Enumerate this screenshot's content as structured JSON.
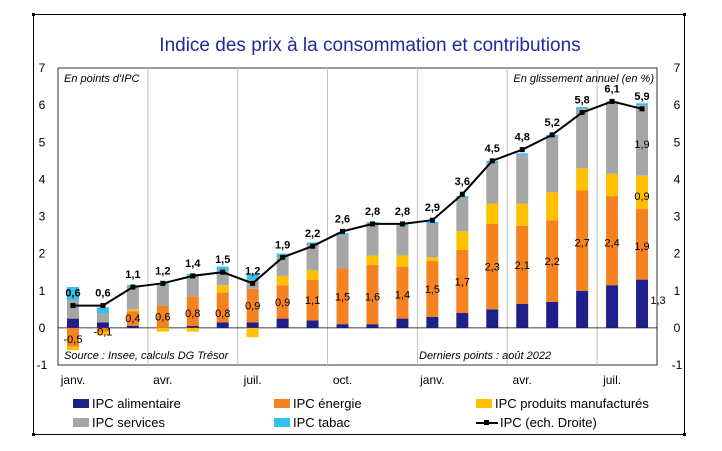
{
  "chart_data": {
    "type": "bar",
    "stacked": true,
    "title": "Indice des prix à la consommation et contributions",
    "left_axis_note": "En points d'IPC",
    "right_axis_note": "En glissement annuel (en %)",
    "source_note": "Source : Insee, calculs DG Trésor",
    "last_points_note": "Derniers points : août 2022",
    "ylim": [
      -1,
      7
    ],
    "y_ticks": [
      "-1",
      "0",
      "1",
      "2",
      "3",
      "4",
      "5",
      "6",
      "7"
    ],
    "x_tick_labels": [
      "janv.",
      "avr.",
      "juil.",
      "oct.",
      "janv.",
      "avr.",
      "juil."
    ],
    "months": [
      "2021-01",
      "2021-02",
      "2021-03",
      "2021-04",
      "2021-05",
      "2021-06",
      "2021-07",
      "2021-08",
      "2021-09",
      "2021-10",
      "2021-11",
      "2021-12",
      "2022-01",
      "2022-02",
      "2022-03",
      "2022-04",
      "2022-05",
      "2022-06",
      "2022-07",
      "2022-08"
    ],
    "series": [
      {
        "name": "IPC alimentaire",
        "color": "#1f1f8c",
        "values": [
          0.25,
          0.15,
          0.05,
          0.0,
          0.05,
          0.15,
          0.15,
          0.25,
          0.2,
          0.1,
          0.1,
          0.25,
          0.3,
          0.4,
          0.5,
          0.65,
          0.7,
          1.0,
          1.15,
          1.3
        ]
      },
      {
        "name": "IPC énergie",
        "color": "#f58220",
        "values": [
          -0.5,
          -0.1,
          0.4,
          0.6,
          0.8,
          0.8,
          0.9,
          0.9,
          1.1,
          1.5,
          1.6,
          1.4,
          1.5,
          1.7,
          2.3,
          2.1,
          2.2,
          2.7,
          2.4,
          1.9
        ]
      },
      {
        "name": "IPC produits manufacturés",
        "color": "#ffc000",
        "values": [
          -0.1,
          -0.1,
          0.05,
          -0.1,
          -0.1,
          0.2,
          -0.25,
          0.25,
          0.25,
          0.0,
          0.25,
          0.3,
          0.1,
          0.5,
          0.55,
          0.6,
          0.75,
          0.6,
          0.6,
          0.9
        ]
      },
      {
        "name": "IPC services",
        "color": "#a6a6a6",
        "values": [
          0.5,
          0.25,
          0.6,
          0.55,
          0.55,
          0.4,
          0.25,
          0.5,
          0.7,
          0.9,
          0.85,
          0.8,
          0.9,
          0.9,
          1.1,
          1.3,
          1.5,
          1.6,
          1.9,
          1.9
        ]
      },
      {
        "name": "IPC tabac",
        "color": "#33bff0",
        "values": [
          0.35,
          0.15,
          0.05,
          0.05,
          0.05,
          0.1,
          0.15,
          0.1,
          0.05,
          0.05,
          0.05,
          0.05,
          0.05,
          0.05,
          0.05,
          0.05,
          0.05,
          0.05,
          0.05,
          0.05
        ]
      }
    ],
    "line": {
      "name": "IPC (ech. Droite)",
      "color": "#000000",
      "values": [
        0.6,
        0.6,
        1.1,
        1.2,
        1.4,
        1.5,
        1.2,
        1.9,
        2.2,
        2.6,
        2.8,
        2.8,
        2.9,
        3.6,
        4.5,
        4.8,
        5.2,
        5.8,
        6.1,
        5.9
      ],
      "labels": [
        "0,6",
        "0,6",
        "1,1",
        "1,2",
        "1,4",
        "1,5",
        "1,2",
        "1,9",
        "2,2",
        "2,6",
        "2,8",
        "2,8",
        "2,9",
        "3,6",
        "4,5",
        "4,8",
        "5,2",
        "5,8",
        "6,1",
        "5,9"
      ]
    },
    "bar_labels": [
      {
        "index": 0,
        "series": "IPC énergie",
        "value": -0.5,
        "text": "-0,5",
        "value_pos": -0.3
      },
      {
        "index": 1,
        "series": "IPC énergie",
        "value": -0.1,
        "text": "-0,1",
        "value_pos": -0.1
      },
      {
        "index": 2,
        "series": "IPC énergie",
        "value": 0.4,
        "text": "0,4",
        "value_pos": 0.27
      },
      {
        "index": 3,
        "series": "IPC énergie",
        "value": 0.6,
        "text": "0,6",
        "value_pos": 0.3
      },
      {
        "index": 4,
        "series": "IPC énergie",
        "value": 0.8,
        "text": "0,8",
        "value_pos": 0.4
      },
      {
        "index": 5,
        "series": "IPC énergie",
        "value": 0.8,
        "text": "0,8",
        "value_pos": 0.4
      },
      {
        "index": 6,
        "series": "IPC énergie",
        "value": 0.9,
        "text": "0,9",
        "value_pos": 0.6
      },
      {
        "index": 7,
        "series": "IPC énergie",
        "value": 0.9,
        "text": "0,9",
        "value_pos": 0.7
      },
      {
        "index": 8,
        "series": "IPC énergie",
        "value": 1.1,
        "text": "1,1",
        "value_pos": 0.75
      },
      {
        "index": 9,
        "series": "IPC énergie",
        "value": 1.5,
        "text": "1,5",
        "value_pos": 0.85
      },
      {
        "index": 10,
        "series": "IPC énergie",
        "value": 1.6,
        "text": "1,6",
        "value_pos": 0.85
      },
      {
        "index": 11,
        "series": "IPC énergie",
        "value": 1.4,
        "text": "1,4",
        "value_pos": 0.9
      },
      {
        "index": 12,
        "series": "IPC énergie",
        "value": 1.5,
        "text": "1,5",
        "value_pos": 1.05
      },
      {
        "index": 13,
        "series": "IPC énergie",
        "value": 1.7,
        "text": "1,7",
        "value_pos": 1.25
      },
      {
        "index": 14,
        "series": "IPC énergie",
        "value": 2.3,
        "text": "2,3",
        "value_pos": 1.65
      },
      {
        "index": 15,
        "series": "IPC énergie",
        "value": 2.1,
        "text": "2,1",
        "value_pos": 1.7
      },
      {
        "index": 16,
        "series": "IPC énergie",
        "value": 2.2,
        "text": "2,2",
        "value_pos": 1.8
      },
      {
        "index": 17,
        "series": "IPC énergie",
        "value": 2.7,
        "text": "2,7",
        "value_pos": 2.3
      },
      {
        "index": 18,
        "series": "IPC énergie",
        "value": 2.4,
        "text": "2,4",
        "value_pos": 2.3
      },
      {
        "index": 19,
        "series": "IPC énergie",
        "value": 1.9,
        "text": "1,9",
        "value_pos": 2.2
      },
      {
        "index": 19,
        "series": "IPC produits manufacturés",
        "value": 0.9,
        "text": "0,9",
        "value_pos": 3.55
      },
      {
        "index": 19,
        "series": "IPC services",
        "value": 1.9,
        "text": "1,9",
        "value_pos": 4.95
      },
      {
        "index": 19,
        "series": "IPC alimentaire",
        "value": 1.3,
        "text": "1,3",
        "value_pos": 0.75
      }
    ]
  }
}
